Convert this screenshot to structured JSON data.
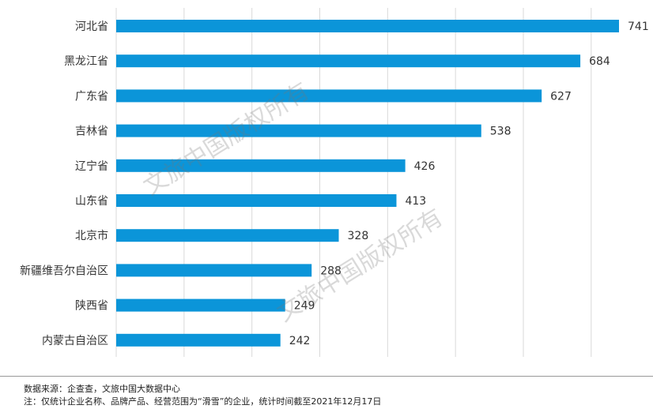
{
  "chart_data": {
    "type": "bar",
    "orientation": "horizontal",
    "categories": [
      "河北省",
      "黑龙江省",
      "广东省",
      "吉林省",
      "辽宁省",
      "山东省",
      "北京市",
      "新疆维吾尔自治区",
      "陕西省",
      "内蒙古自治区"
    ],
    "values": [
      741,
      684,
      627,
      538,
      426,
      413,
      328,
      288,
      249,
      242
    ],
    "xlim": [
      0,
      800
    ],
    "grid": true,
    "bar_color": "#0b95d9"
  },
  "watermark": "文旅中国版权所有",
  "footer": {
    "source": "数据来源：企查查，文旅中国大数据中心",
    "note": "注：仅统计企业名称、品牌产品、经营范围为“滑雪”的企业，统计时间截至2021年12月17日"
  }
}
